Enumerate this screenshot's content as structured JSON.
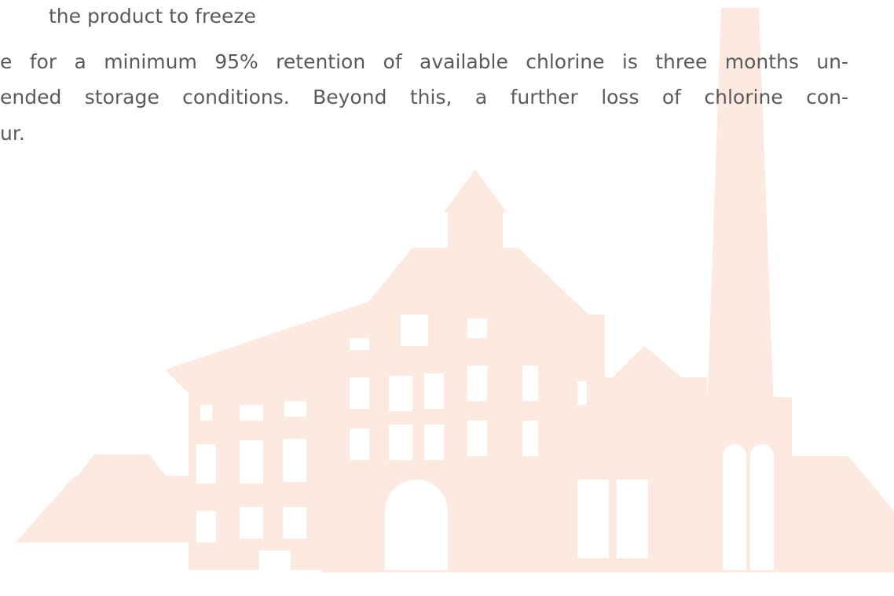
{
  "text": {
    "lines": [
      "the product to freeze",
      "e for a minimum 95% retention of available chlorine is three months un-",
      "ended storage conditions. Beyond this, a further loss of chlorine con-",
      "ur."
    ]
  }
}
